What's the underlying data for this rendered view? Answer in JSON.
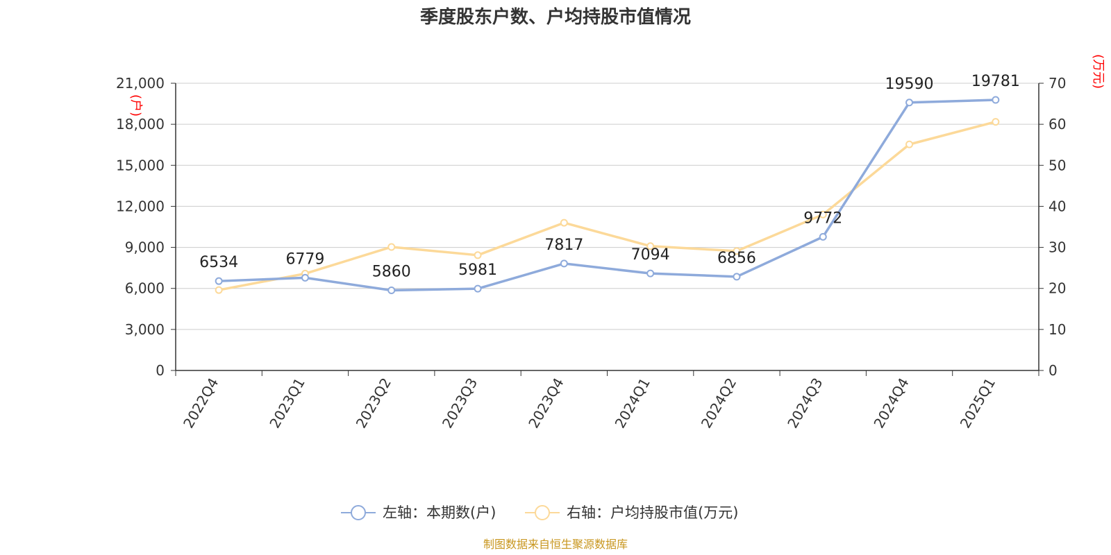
{
  "chart_data": {
    "type": "line",
    "title": "季度股东户数、户均持股市值情况",
    "categories": [
      "2022Q4",
      "2023Q1",
      "2023Q2",
      "2023Q3",
      "2023Q4",
      "2024Q1",
      "2024Q2",
      "2024Q3",
      "2024Q4",
      "2025Q1"
    ],
    "left_axis": {
      "unit_label": "(户)",
      "min": 0,
      "max": 21000,
      "ticks": [
        "0",
        "3,000",
        "6,000",
        "9,000",
        "12,000",
        "15,000",
        "18,000",
        "21,000"
      ]
    },
    "right_axis": {
      "unit_label": "(万元)",
      "min": 0,
      "max": 70,
      "ticks": [
        "0",
        "10",
        "20",
        "30",
        "40",
        "50",
        "60",
        "70"
      ]
    },
    "grid": true,
    "legend_position": "bottom",
    "series": [
      {
        "name": "左轴：本期数(户)",
        "axis": "left",
        "color": "#8eaadb",
        "values": [
          6534,
          6779,
          5860,
          5981,
          7817,
          7094,
          6856,
          9772,
          19590,
          19781
        ],
        "data_labels": [
          "6534",
          "6779",
          "5860",
          "5981",
          "7817",
          "7094",
          "6856",
          "9772",
          "19590",
          "19781"
        ]
      },
      {
        "name": "右轴：户均持股市值(万元)",
        "axis": "right",
        "color": "#fcd999",
        "values": [
          19.6,
          23.6,
          30.1,
          28.1,
          36.0,
          30.3,
          29.1,
          38.0,
          55.1,
          60.6
        ]
      }
    ]
  },
  "source": "制图数据来自恒生聚源数据库"
}
